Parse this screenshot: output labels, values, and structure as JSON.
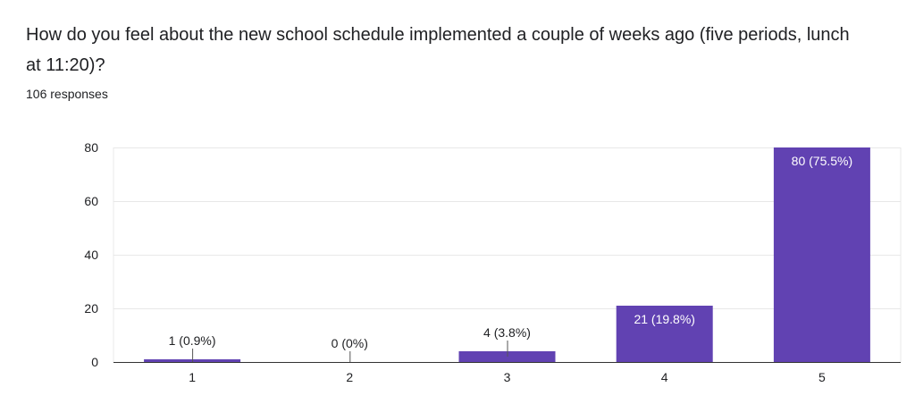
{
  "question": {
    "title": "How do you feel about the new school schedule implemented a couple of weeks ago (five periods, lunch at 11:20)?",
    "response_count": "106 responses"
  },
  "colors": {
    "bar": "#6142b2",
    "grid": "#e8e8e8",
    "axis": "#333333",
    "text": "#202124",
    "label_inside": "#ffffff"
  },
  "chart_data": {
    "type": "bar",
    "categories": [
      "1",
      "2",
      "3",
      "4",
      "5"
    ],
    "values": [
      1,
      0,
      4,
      21,
      80
    ],
    "data_labels": [
      "1 (0.9%)",
      "0 (0%)",
      "4 (3.8%)",
      "21 (19.8%)",
      "80 (75.5%)"
    ],
    "y_ticks": [
      "0",
      "20",
      "40",
      "60",
      "80"
    ],
    "ylim": [
      0,
      80
    ],
    "grid": true,
    "legend": "none"
  }
}
